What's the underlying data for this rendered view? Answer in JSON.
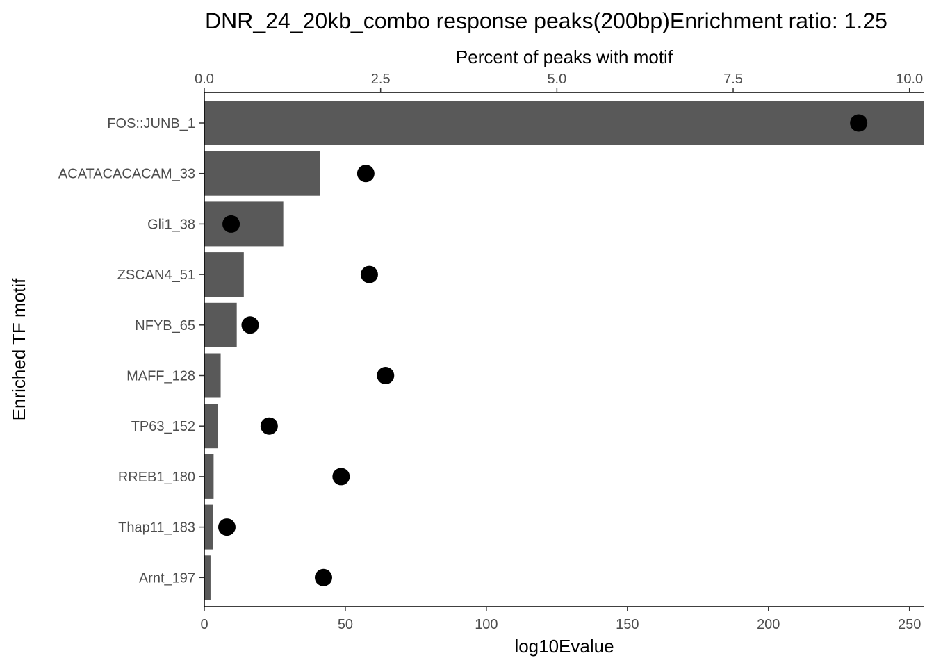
{
  "chart_data": {
    "type": "bar",
    "title": "DNR_24_20kb_combo response peaks(200bp)Enrichment ratio: 1.25",
    "ylabel": "Enriched TF motif",
    "bars": {
      "xlabel": "log10Evalue",
      "xlim": [
        0,
        255
      ],
      "xticks": [
        0,
        50,
        100,
        150,
        200,
        250
      ],
      "color": "#595959"
    },
    "points": {
      "xlabel": "Percent of peaks with motif",
      "xlim": [
        0,
        10.2
      ],
      "xticks": [
        "0.0",
        "2.5",
        "5.0",
        "7.5",
        "10.0"
      ],
      "color": "#000000"
    },
    "categories": [
      "FOS::JUNB_1",
      "ACATACACACAM_33",
      "Gli1_38",
      "ZSCAN4_51",
      "NFYB_65",
      "MAFF_128",
      "TP63_152",
      "RREB1_180",
      "Thap11_183",
      "Arnt_197"
    ],
    "log10Evalue": [
      255,
      41,
      28,
      14,
      11.5,
      5.8,
      4.8,
      3.3,
      3,
      2.2
    ],
    "percent": [
      9.28,
      2.29,
      0.38,
      2.34,
      0.65,
      2.57,
      0.92,
      1.94,
      0.32,
      1.69
    ],
    "grid": false,
    "legend": "none"
  }
}
